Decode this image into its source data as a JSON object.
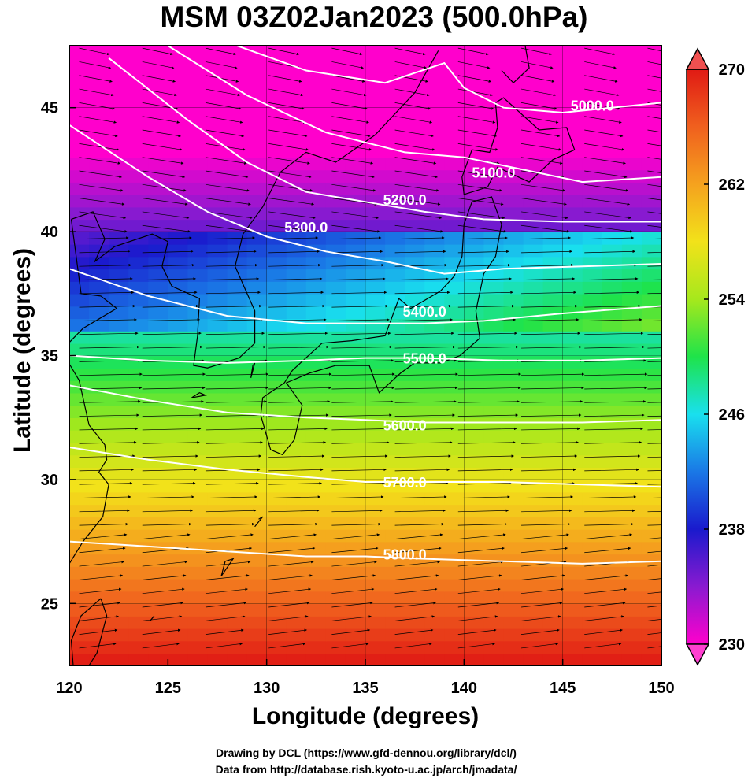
{
  "title": "MSM 03Z02Jan2023 (500.0hPa)",
  "xlabel": "Longitude (degrees)",
  "ylabel": "Latitude  (degrees)",
  "credits": [
    "Drawing by DCL (https://www.gfd-dennou.org/library/dcl/)",
    "Data from http://database.rish.kyoto-u.ac.jp/arch/jmadata/"
  ],
  "map": {
    "lon_range": [
      120,
      150
    ],
    "lat_range": [
      22.5,
      47.5
    ],
    "lon_ticks": [
      "120",
      "125",
      "130",
      "135",
      "140",
      "145",
      "150"
    ],
    "lat_ticks": [
      "25",
      "30",
      "35",
      "40",
      "45"
    ],
    "grid": true
  },
  "colorbar": {
    "min": 230,
    "max": 270,
    "ticks": [
      "230",
      "238",
      "246",
      "254",
      "262",
      "270"
    ],
    "colors": [
      "#ff00cc",
      "#8a1ad0",
      "#1a1acd",
      "#1a78e6",
      "#19e0ee",
      "#1ee34a",
      "#a6e81c",
      "#f2e21a",
      "#f5a21e",
      "#f0601e",
      "#e01a14"
    ]
  },
  "contours": [
    {
      "label": "5000.0"
    },
    {
      "label": "5100.0"
    },
    {
      "label": "5200.0"
    },
    {
      "label": "5300.0"
    },
    {
      "label": "5400.0"
    },
    {
      "label": "5500.0"
    },
    {
      "label": "5600.0"
    },
    {
      "label": "5700.0"
    },
    {
      "label": "5800.0"
    }
  ]
}
